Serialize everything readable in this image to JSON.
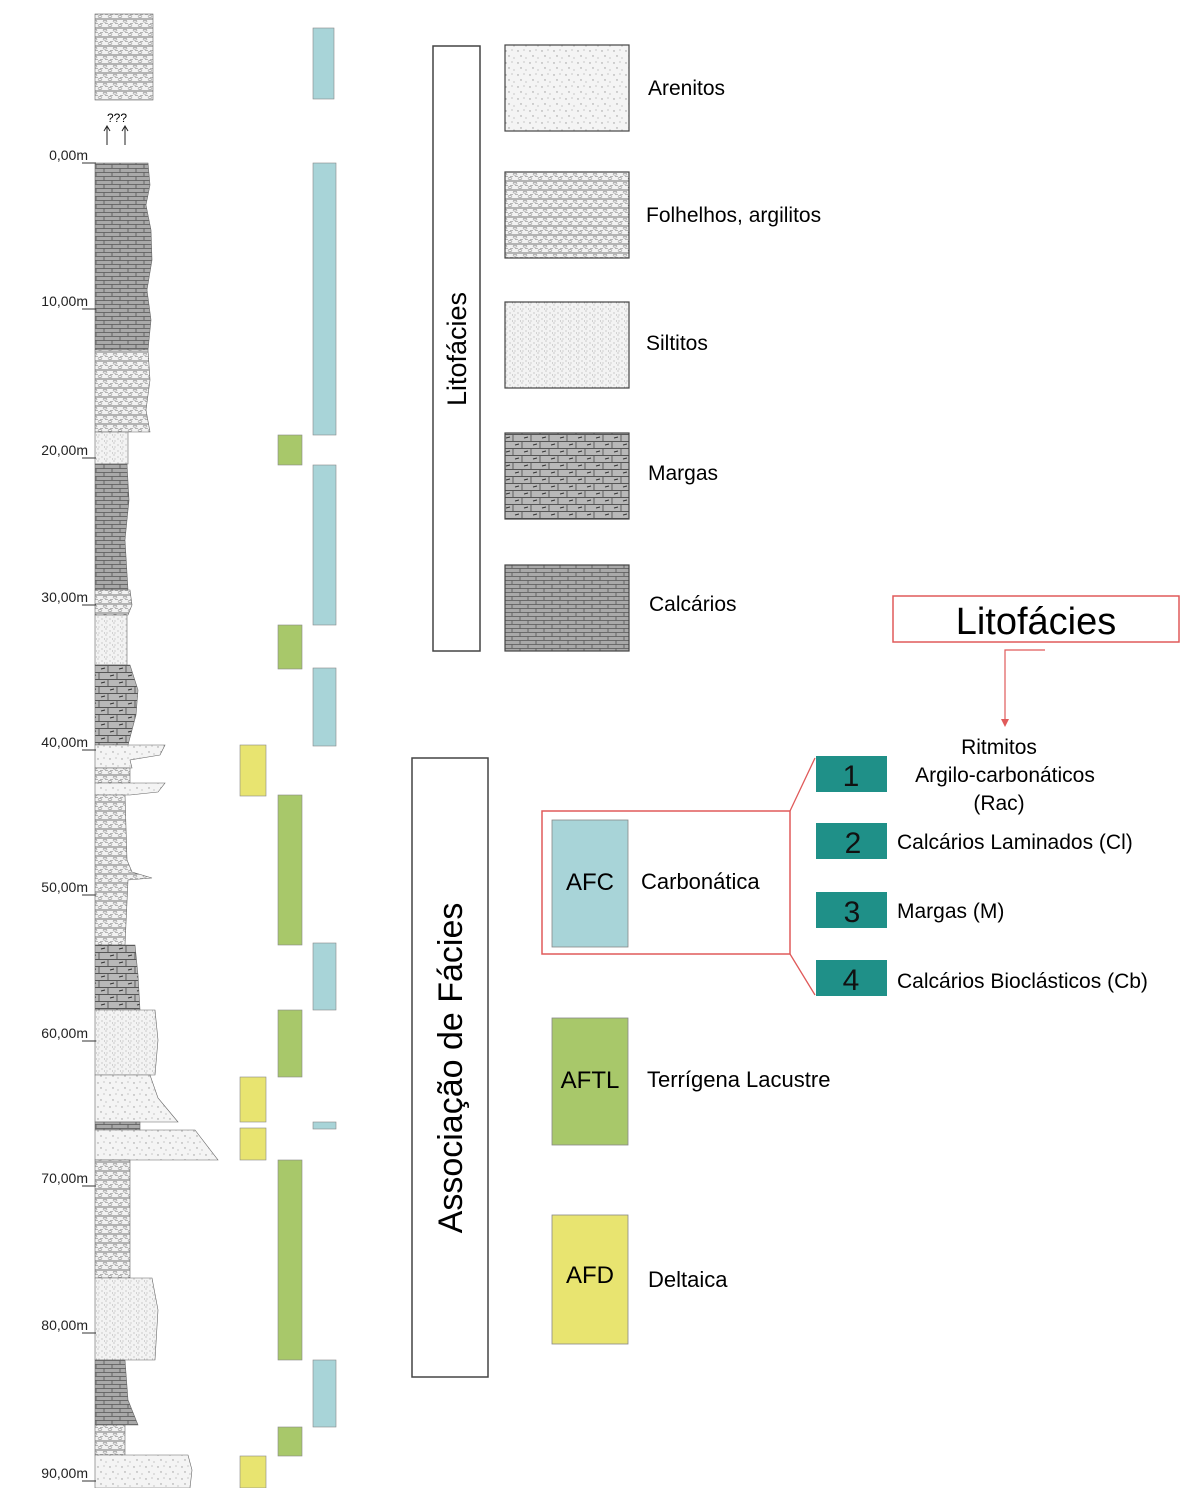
{
  "column": {
    "unknown_marker": "???",
    "depth_labels": [
      "0,00m",
      "10,00m",
      "20,00m",
      "30,00m",
      "40,00m",
      "50,00m",
      "60,00m",
      "70,00m",
      "80,00m",
      "90,00m"
    ]
  },
  "lithofacies_panel": {
    "title": "Litofácies",
    "items": [
      {
        "label": "Arenitos",
        "pattern": "arenito"
      },
      {
        "label": "Folhelhos, argilitos",
        "pattern": "folhelho"
      },
      {
        "label": "Siltitos",
        "pattern": "siltito"
      },
      {
        "label": "Margas",
        "pattern": "marga"
      },
      {
        "label": "Calcários",
        "pattern": "calcario"
      }
    ]
  },
  "associations_panel": {
    "title": "Associação de Fácies",
    "items": [
      {
        "code": "AFC",
        "name": "Carbonática",
        "color": "#a8d4d8"
      },
      {
        "code": "AFTL",
        "name": "Terrígena Lacustre",
        "color": "#a8c86a"
      },
      {
        "code": "AFD",
        "name": "Deltaica",
        "color": "#e8e470"
      }
    ]
  },
  "callout": {
    "title": "Litofácies",
    "box_border_color": "#e05a5a",
    "number_box_color": "#1f9088",
    "items": [
      {
        "number": "1",
        "lines": [
          "Ritmitos",
          "Argilo-carbonáticos",
          "(Rac)"
        ]
      },
      {
        "number": "2",
        "lines": [
          "Calcários Laminados (Cl)"
        ]
      },
      {
        "number": "3",
        "lines": [
          "Margas (M)"
        ]
      },
      {
        "number": "4",
        "lines": [
          "Calcários Bioclásticos (Cb)"
        ]
      }
    ]
  }
}
